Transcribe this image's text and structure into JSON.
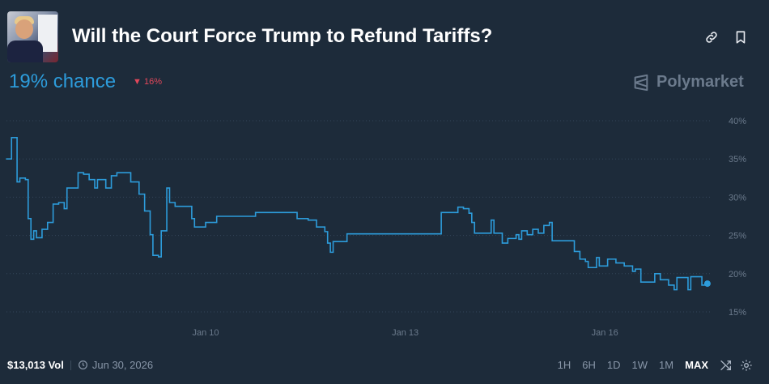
{
  "header": {
    "title": "Will the Court Force Trump to Refund Tariffs?",
    "icons": [
      "link-icon",
      "bookmark-icon"
    ]
  },
  "summary": {
    "chance": "19% chance",
    "delta": "16%",
    "delta_direction": "down",
    "brand": "Polymarket"
  },
  "colors": {
    "line": "#2d9cdb",
    "down": "#e2475a",
    "background": "#1d2b3a"
  },
  "chart_data": {
    "type": "line",
    "ylim": [
      15,
      40
    ],
    "yticks": [
      "40%",
      "35%",
      "30%",
      "25%",
      "20%",
      "15%"
    ],
    "ytick_values": [
      40,
      35,
      30,
      25,
      20,
      15
    ],
    "xticks": [
      "Jan 10",
      "Jan 13",
      "Jan 16"
    ],
    "xtick_values": [
      "Jan 10 00",
      "Jan 13 00",
      "Jan 16 00"
    ],
    "grid": "horizontal-dotted",
    "series": [
      {
        "points": [
          [
            "Jan 7 00",
            35
          ],
          [
            "Jan 7 02",
            37.8
          ],
          [
            "Jan 7 03",
            37.8
          ],
          [
            "Jan 7 04",
            32
          ],
          [
            "Jan 7 05",
            32.5
          ],
          [
            "Jan 7 07",
            32.3
          ],
          [
            "Jan 7 08",
            27.2
          ],
          [
            "Jan 7 09",
            24.5
          ],
          [
            "Jan 7 10",
            25.6
          ],
          [
            "Jan 7 11",
            24.7
          ],
          [
            "Jan 7 13",
            25.8
          ],
          [
            "Jan 7 15",
            26.7
          ],
          [
            "Jan 7 17",
            29.1
          ],
          [
            "Jan 7 19",
            29.3
          ],
          [
            "Jan 7 21",
            28.5
          ],
          [
            "Jan 7 22",
            31.2
          ],
          [
            "Jan 8 01",
            31.2
          ],
          [
            "Jan 8 02",
            33.2
          ],
          [
            "Jan 8 04",
            33
          ],
          [
            "Jan 8 06",
            32.3
          ],
          [
            "Jan 8 08",
            31.2
          ],
          [
            "Jan 8 09",
            32.3
          ],
          [
            "Jan 8 12",
            31.2
          ],
          [
            "Jan 8 14",
            32.8
          ],
          [
            "Jan 8 16",
            33.2
          ],
          [
            "Jan 8 19",
            33.2
          ],
          [
            "Jan 8 21",
            32
          ],
          [
            "Jan 9 00",
            30.4
          ],
          [
            "Jan 9 02",
            28.2
          ],
          [
            "Jan 9 04",
            25.1
          ],
          [
            "Jan 9 05",
            22.4
          ],
          [
            "Jan 9 07",
            22.2
          ],
          [
            "Jan 9 08",
            25.6
          ],
          [
            "Jan 9 10",
            31.2
          ],
          [
            "Jan 9 11",
            29.3
          ],
          [
            "Jan 9 13",
            28.8
          ],
          [
            "Jan 9 15",
            28.8
          ],
          [
            "Jan 9 18",
            28.8
          ],
          [
            "Jan 9 19",
            27.2
          ],
          [
            "Jan 9 20",
            26.1
          ],
          [
            "Jan 9 23",
            26.1
          ],
          [
            "Jan 10 00",
            26.7
          ],
          [
            "Jan 10 02",
            26.7
          ],
          [
            "Jan 10 04",
            27.5
          ],
          [
            "Jan 10 17",
            27.5
          ],
          [
            "Jan 10 18",
            28
          ],
          [
            "Jan 10 19",
            28
          ],
          [
            "Jan 11 07",
            28
          ],
          [
            "Jan 11 09",
            27.2
          ],
          [
            "Jan 11 13",
            27
          ],
          [
            "Jan 11 16",
            26.1
          ],
          [
            "Jan 11 19",
            25.5
          ],
          [
            "Jan 11 20",
            24
          ],
          [
            "Jan 11 21",
            22.8
          ],
          [
            "Jan 11 22",
            24.2
          ],
          [
            "Jan 12 02",
            24.2
          ],
          [
            "Jan 12 03",
            25.2
          ],
          [
            "Jan 12 06",
            25.2
          ],
          [
            "Jan 13 12",
            25.2
          ],
          [
            "Jan 13 13",
            28
          ],
          [
            "Jan 13 17",
            28
          ],
          [
            "Jan 13 19",
            28.7
          ],
          [
            "Jan 13 21",
            28.5
          ],
          [
            "Jan 13 23",
            27.9
          ],
          [
            "Jan 14 00",
            26.7
          ],
          [
            "Jan 14 01",
            25.3
          ],
          [
            "Jan 14 06",
            25.3
          ],
          [
            "Jan 14 07",
            27
          ],
          [
            "Jan 14 08",
            25.3
          ],
          [
            "Jan 14 11",
            24
          ],
          [
            "Jan 14 13",
            24.6
          ],
          [
            "Jan 14 16",
            25.1
          ],
          [
            "Jan 14 17",
            24.5
          ],
          [
            "Jan 14 18",
            25.6
          ],
          [
            "Jan 14 20",
            25.1
          ],
          [
            "Jan 14 22",
            25.8
          ],
          [
            "Jan 15 00",
            25.3
          ],
          [
            "Jan 15 02",
            26.3
          ],
          [
            "Jan 15 04",
            26.7
          ],
          [
            "Jan 15 05",
            24.3
          ],
          [
            "Jan 15 10",
            24.3
          ],
          [
            "Jan 15 13",
            22.9
          ],
          [
            "Jan 15 15",
            21.9
          ],
          [
            "Jan 15 17",
            21.6
          ],
          [
            "Jan 15 18",
            20.8
          ],
          [
            "Jan 15 21",
            22.1
          ],
          [
            "Jan 15 22",
            21
          ],
          [
            "Jan 16 01",
            21.9
          ],
          [
            "Jan 16 04",
            21.4
          ],
          [
            "Jan 16 07",
            21
          ],
          [
            "Jan 16 10",
            20.3
          ],
          [
            "Jan 16 11",
            20.6
          ],
          [
            "Jan 16 13",
            18.9
          ],
          [
            "Jan 16 17",
            18.9
          ],
          [
            "Jan 16 18",
            20
          ],
          [
            "Jan 16 20",
            19.2
          ],
          [
            "Jan 16 23",
            18.5
          ],
          [
            "Jan 17 01",
            17.9
          ],
          [
            "Jan 17 02",
            19.5
          ],
          [
            "Jan 17 05",
            19.5
          ],
          [
            "Jan 17 06",
            17.9
          ],
          [
            "Jan 17 07",
            19.6
          ],
          [
            "Jan 17 10",
            19.6
          ],
          [
            "Jan 17 11",
            18.5
          ],
          [
            "Jan 17 13",
            18.7
          ]
        ]
      }
    ]
  },
  "footer": {
    "volume": "$13,013 Vol",
    "end_date": "Jun 30, 2026",
    "ranges": [
      "1H",
      "6H",
      "1D",
      "1W",
      "1M",
      "MAX"
    ],
    "active_range": "MAX"
  }
}
